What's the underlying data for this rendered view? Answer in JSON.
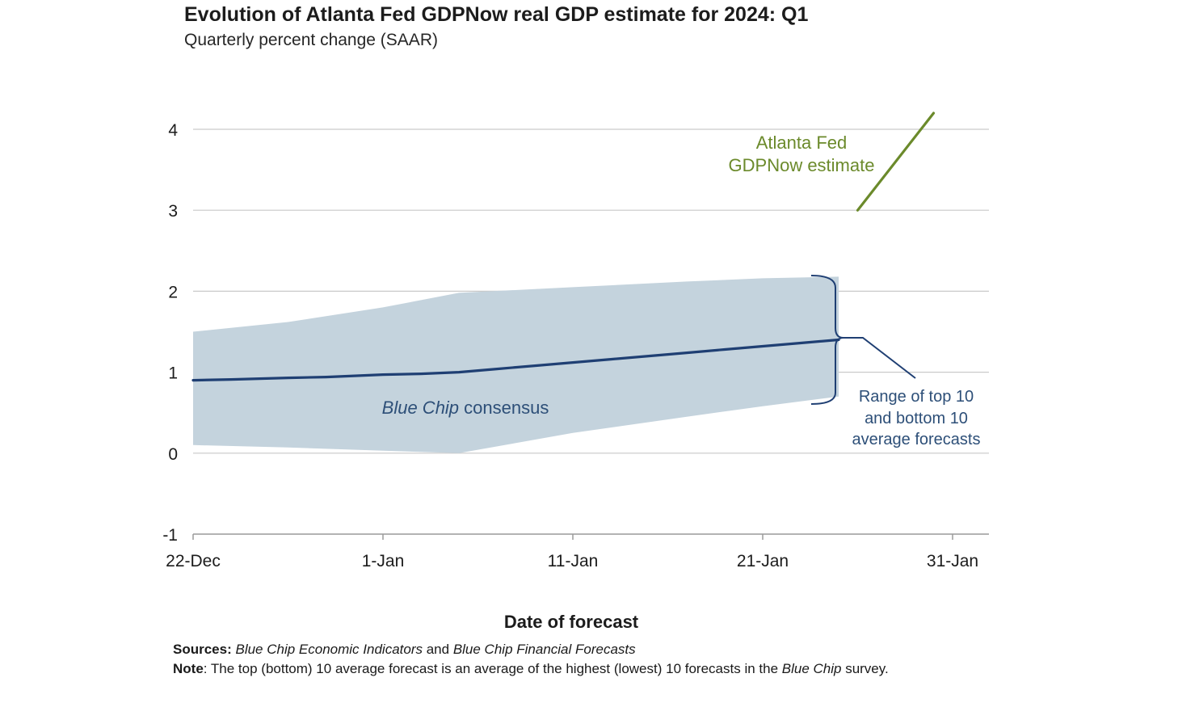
{
  "header": {
    "title": "Evolution of Atlanta Fed GDPNow real GDP estimate for 2024: Q1",
    "subtitle": "Quarterly percent change (SAAR)"
  },
  "chart_data": {
    "type": "line",
    "title": "Evolution of Atlanta Fed GDPNow real GDP estimate for 2024: Q1",
    "subtitle": "Quarterly percent change (SAAR)",
    "xlabel": "Date of forecast",
    "ylabel": "",
    "x_ticks": [
      "22-Dec",
      "1-Jan",
      "11-Jan",
      "21-Jan",
      "31-Jan"
    ],
    "y_ticks": [
      "4",
      "3",
      "2",
      "1",
      "0",
      "-1"
    ],
    "ylim": [
      -1,
      4
    ],
    "grid": true,
    "series": [
      {
        "name": "Atlanta Fed GDPNow estimate",
        "color": "#6b8a2b",
        "x": [
          "2024-01-26",
          "2024-01-30"
        ],
        "y": [
          3.0,
          4.2
        ]
      },
      {
        "name": "Blue Chip consensus",
        "color": "#1f3f73",
        "x": [
          "2023-12-22",
          "2023-12-24",
          "2023-12-27",
          "2023-12-29",
          "2024-01-01",
          "2024-01-03",
          "2024-01-05",
          "2024-01-07",
          "2024-01-09",
          "2024-01-11",
          "2024-01-13",
          "2024-01-15",
          "2024-01-17",
          "2024-01-19",
          "2024-01-21",
          "2024-01-23",
          "2024-01-25"
        ],
        "y": [
          0.9,
          0.91,
          0.93,
          0.94,
          0.97,
          0.98,
          1.0,
          1.04,
          1.08,
          1.12,
          1.16,
          1.2,
          1.24,
          1.28,
          1.32,
          1.36,
          1.4
        ]
      }
    ],
    "range_band": {
      "name": "Range of top 10 and bottom 10 average forecasts",
      "color": "#c4d3dd",
      "x": [
        "2023-12-22",
        "2023-12-27",
        "2024-01-01",
        "2024-01-05",
        "2024-01-11",
        "2024-01-17",
        "2024-01-21",
        "2024-01-25"
      ],
      "upper": [
        1.5,
        1.62,
        1.8,
        1.98,
        2.05,
        2.12,
        2.16,
        2.18
      ],
      "lower": [
        0.1,
        0.07,
        0.03,
        0.0,
        0.25,
        0.45,
        0.58,
        0.7
      ]
    },
    "annotations": {
      "gdpnow_line1": "Atlanta Fed",
      "gdpnow_line2": "GDPNow estimate",
      "consensus_italic": "Blue Chip",
      "consensus_rest": " consensus",
      "range_line1": "Range of top 10",
      "range_line2": "and bottom 10",
      "range_line3": "average forecasts"
    }
  },
  "footer": {
    "sources_label": "Sources:",
    "sources_text_1": "Blue Chip Economic Indicators",
    "sources_and": " and ",
    "sources_text_2": "Blue Chip Financial Forecasts",
    "note_label": "Note",
    "note_text": ": The top (bottom) 10 average forecast is an average of the highest (lowest) 10 forecasts in the ",
    "note_italic": "Blue Chip",
    "note_end": " survey."
  }
}
